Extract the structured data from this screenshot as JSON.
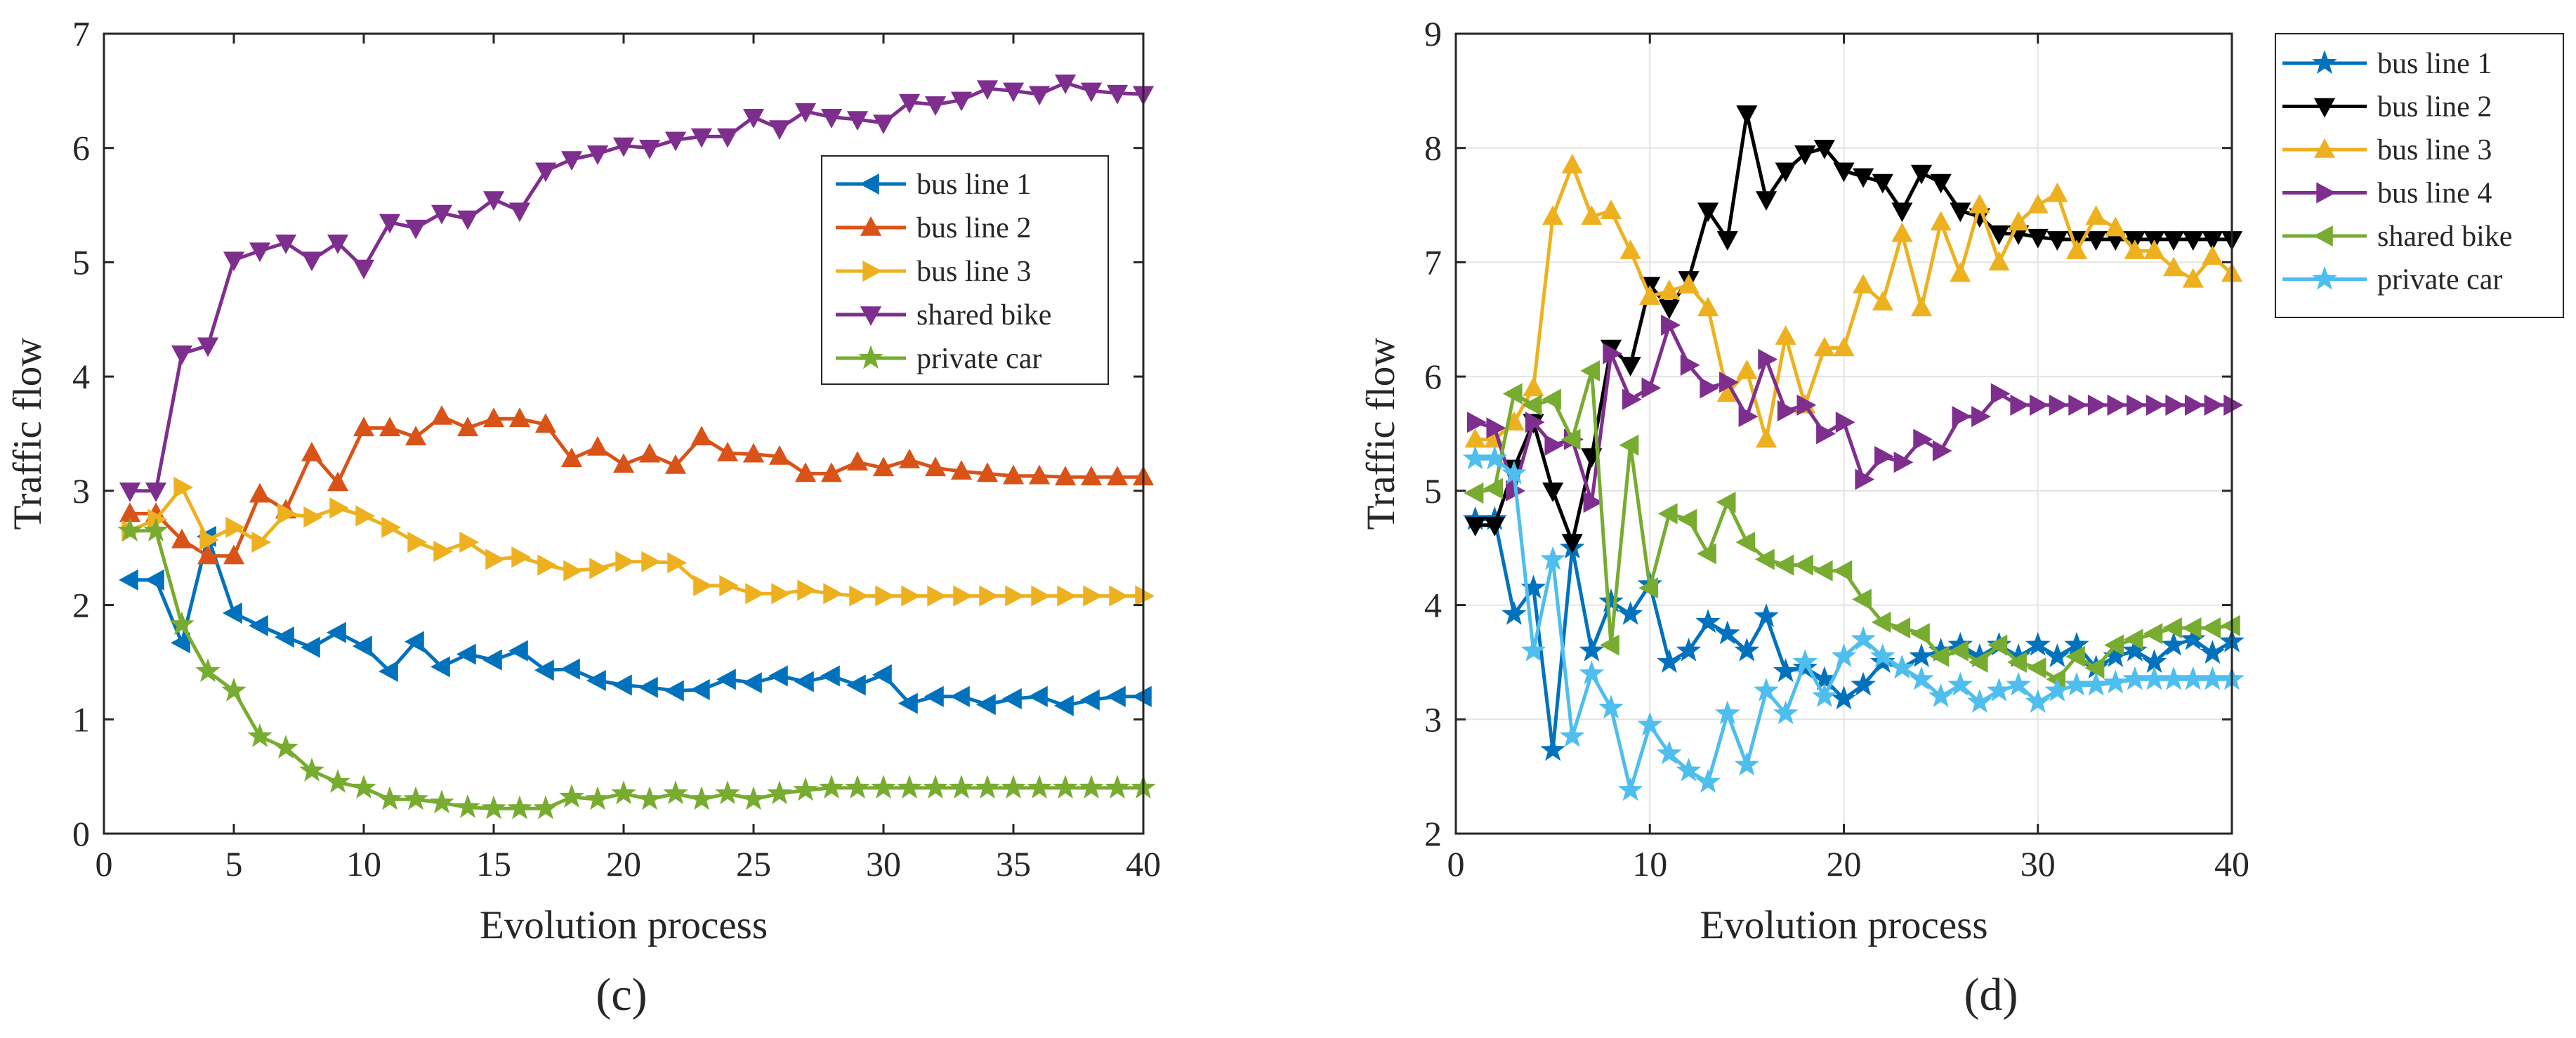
{
  "chart_data": [
    {
      "type": "line",
      "panel_label": "(c)",
      "xlabel": "Evolution process",
      "ylabel": "Traffic flow",
      "xlim": [
        0,
        40
      ],
      "ylim": [
        0,
        7
      ],
      "xticks": [
        "0",
        "5",
        "10",
        "15",
        "20",
        "25",
        "30",
        "35",
        "40"
      ],
      "yticks": [
        "0",
        "1",
        "2",
        "3",
        "4",
        "5",
        "6",
        "7"
      ],
      "grid": false,
      "legend_position": "upper-right",
      "x": [
        1,
        2,
        3,
        4,
        5,
        6,
        7,
        8,
        9,
        10,
        11,
        12,
        13,
        14,
        15,
        16,
        17,
        18,
        19,
        20,
        21,
        22,
        23,
        24,
        25,
        26,
        27,
        28,
        29,
        30,
        31,
        32,
        33,
        34,
        35,
        36,
        37,
        38,
        39,
        40
      ],
      "series": [
        {
          "name": "bus line 1",
          "color": "#0072bd",
          "marker": "triangle-left",
          "values": [
            2.22,
            2.22,
            1.67,
            2.6,
            1.93,
            1.82,
            1.72,
            1.63,
            1.76,
            1.64,
            1.42,
            1.68,
            1.46,
            1.57,
            1.52,
            1.6,
            1.43,
            1.44,
            1.34,
            1.3,
            1.28,
            1.25,
            1.26,
            1.35,
            1.32,
            1.38,
            1.33,
            1.38,
            1.3,
            1.39,
            1.14,
            1.2,
            1.2,
            1.13,
            1.18,
            1.2,
            1.12,
            1.17,
            1.2,
            1.2
          ]
        },
        {
          "name": "bus line 2",
          "color": "#d95319",
          "marker": "triangle-up",
          "values": [
            2.8,
            2.8,
            2.57,
            2.43,
            2.43,
            2.97,
            2.83,
            3.33,
            3.07,
            3.55,
            3.55,
            3.47,
            3.65,
            3.55,
            3.63,
            3.63,
            3.58,
            3.28,
            3.38,
            3.23,
            3.32,
            3.22,
            3.47,
            3.33,
            3.32,
            3.3,
            3.15,
            3.15,
            3.25,
            3.2,
            3.27,
            3.2,
            3.17,
            3.15,
            3.13,
            3.13,
            3.12,
            3.12,
            3.12,
            3.12
          ]
        },
        {
          "name": "bus line 3",
          "color": "#edb120",
          "marker": "triangle-right",
          "values": [
            2.65,
            2.75,
            3.03,
            2.57,
            2.68,
            2.55,
            2.8,
            2.77,
            2.85,
            2.78,
            2.68,
            2.55,
            2.47,
            2.55,
            2.4,
            2.42,
            2.35,
            2.3,
            2.32,
            2.38,
            2.38,
            2.37,
            2.17,
            2.17,
            2.1,
            2.1,
            2.13,
            2.1,
            2.08,
            2.08,
            2.08,
            2.08,
            2.08,
            2.08,
            2.08,
            2.08,
            2.08,
            2.08,
            2.08,
            2.08
          ]
        },
        {
          "name": "shared bike",
          "color": "#7e2f8e",
          "marker": "triangle-down",
          "values": [
            3.0,
            3.0,
            4.2,
            4.27,
            5.02,
            5.1,
            5.17,
            5.02,
            5.17,
            4.95,
            5.35,
            5.3,
            5.43,
            5.38,
            5.55,
            5.45,
            5.8,
            5.9,
            5.95,
            6.02,
            6.0,
            6.07,
            6.1,
            6.1,
            6.27,
            6.17,
            6.32,
            6.27,
            6.25,
            6.22,
            6.4,
            6.38,
            6.42,
            6.52,
            6.5,
            6.47,
            6.57,
            6.5,
            6.48,
            6.47
          ]
        },
        {
          "name": "private car",
          "color": "#77ac30",
          "marker": "star",
          "values": [
            2.65,
            2.65,
            1.83,
            1.42,
            1.25,
            0.85,
            0.75,
            0.55,
            0.45,
            0.4,
            0.3,
            0.3,
            0.27,
            0.23,
            0.22,
            0.22,
            0.22,
            0.32,
            0.3,
            0.35,
            0.3,
            0.35,
            0.3,
            0.35,
            0.3,
            0.35,
            0.38,
            0.4,
            0.4,
            0.4,
            0.4,
            0.4,
            0.4,
            0.4,
            0.4,
            0.4,
            0.4,
            0.4,
            0.4,
            0.4
          ]
        }
      ]
    },
    {
      "type": "line",
      "panel_label": "(d)",
      "xlabel": "Evolution process",
      "ylabel": "Traffic flow",
      "xlim": [
        0,
        40
      ],
      "ylim": [
        2,
        9
      ],
      "xticks": [
        "0",
        "10",
        "20",
        "30",
        "40"
      ],
      "yticks": [
        "2",
        "3",
        "4",
        "5",
        "6",
        "7",
        "8",
        "9"
      ],
      "grid": true,
      "legend_position": "outside-right",
      "x": [
        1,
        2,
        3,
        4,
        5,
        6,
        7,
        8,
        9,
        10,
        11,
        12,
        13,
        14,
        15,
        16,
        17,
        18,
        19,
        20,
        21,
        22,
        23,
        24,
        25,
        26,
        27,
        28,
        29,
        30,
        31,
        32,
        33,
        34,
        35,
        36,
        37,
        38,
        39,
        40
      ],
      "series": [
        {
          "name": "bus line 1",
          "color": "#0072bd",
          "marker": "star",
          "values": [
            4.75,
            4.75,
            3.92,
            4.15,
            2.73,
            4.5,
            3.6,
            4.03,
            3.92,
            4.18,
            3.5,
            3.6,
            3.85,
            3.75,
            3.6,
            3.9,
            3.42,
            3.45,
            3.35,
            3.18,
            3.3,
            3.5,
            3.45,
            3.55,
            3.6,
            3.65,
            3.55,
            3.65,
            3.55,
            3.65,
            3.55,
            3.65,
            3.45,
            3.55,
            3.6,
            3.5,
            3.65,
            3.7,
            3.58,
            3.68
          ]
        },
        {
          "name": "bus line 2",
          "color": "#000000",
          "marker": "triangle-down",
          "values": [
            4.7,
            4.7,
            5.2,
            5.6,
            5.0,
            4.55,
            5.3,
            6.25,
            6.1,
            6.8,
            6.6,
            6.85,
            7.45,
            7.2,
            8.3,
            7.55,
            7.8,
            7.95,
            8.0,
            7.8,
            7.75,
            7.7,
            7.45,
            7.78,
            7.7,
            7.45,
            7.4,
            7.25,
            7.25,
            7.22,
            7.2,
            7.2,
            7.2,
            7.2,
            7.2,
            7.2,
            7.2,
            7.2,
            7.2,
            7.2
          ]
        },
        {
          "name": "bus line 3",
          "color": "#edb120",
          "marker": "triangle-up",
          "values": [
            5.45,
            5.45,
            5.6,
            5.9,
            7.4,
            7.85,
            7.4,
            7.45,
            7.1,
            6.7,
            6.75,
            6.8,
            6.6,
            5.85,
            6.05,
            5.45,
            6.35,
            5.75,
            6.25,
            6.25,
            6.8,
            6.65,
            7.25,
            6.6,
            7.35,
            6.9,
            7.5,
            7.0,
            7.35,
            7.5,
            7.6,
            7.1,
            7.4,
            7.3,
            7.1,
            7.1,
            6.95,
            6.85,
            7.05,
            6.9
          ]
        },
        {
          "name": "bus line 4",
          "color": "#7e2f8e",
          "marker": "triangle-right",
          "values": [
            5.6,
            5.55,
            5.0,
            5.6,
            5.4,
            5.45,
            4.9,
            6.2,
            5.8,
            5.9,
            6.45,
            6.1,
            5.9,
            5.95,
            5.65,
            6.15,
            5.7,
            5.75,
            5.5,
            5.6,
            5.1,
            5.3,
            5.25,
            5.45,
            5.35,
            5.65,
            5.65,
            5.85,
            5.75,
            5.75,
            5.75,
            5.75,
            5.75,
            5.75,
            5.75,
            5.75,
            5.75,
            5.75,
            5.75,
            5.75
          ]
        },
        {
          "name": "shared bike",
          "color": "#77ac30",
          "marker": "triangle-left",
          "values": [
            4.98,
            5.02,
            5.85,
            5.75,
            5.8,
            5.45,
            6.05,
            3.65,
            5.4,
            4.15,
            4.8,
            4.75,
            4.45,
            4.9,
            4.55,
            4.4,
            4.35,
            4.35,
            4.3,
            4.3,
            4.05,
            3.85,
            3.8,
            3.75,
            3.55,
            3.6,
            3.5,
            3.65,
            3.5,
            3.45,
            3.35,
            3.55,
            3.45,
            3.65,
            3.7,
            3.75,
            3.8,
            3.8,
            3.8,
            3.82
          ]
        },
        {
          "name": "private car",
          "color": "#4dbeee",
          "marker": "star",
          "values": [
            5.28,
            5.28,
            5.15,
            3.6,
            4.4,
            2.85,
            3.4,
            3.1,
            2.38,
            2.95,
            2.7,
            2.55,
            2.45,
            3.05,
            2.6,
            3.25,
            3.05,
            3.5,
            3.2,
            3.55,
            3.7,
            3.55,
            3.45,
            3.35,
            3.2,
            3.3,
            3.15,
            3.25,
            3.3,
            3.15,
            3.25,
            3.3,
            3.3,
            3.32,
            3.35,
            3.35,
            3.35,
            3.35,
            3.35,
            3.35
          ]
        }
      ]
    }
  ]
}
